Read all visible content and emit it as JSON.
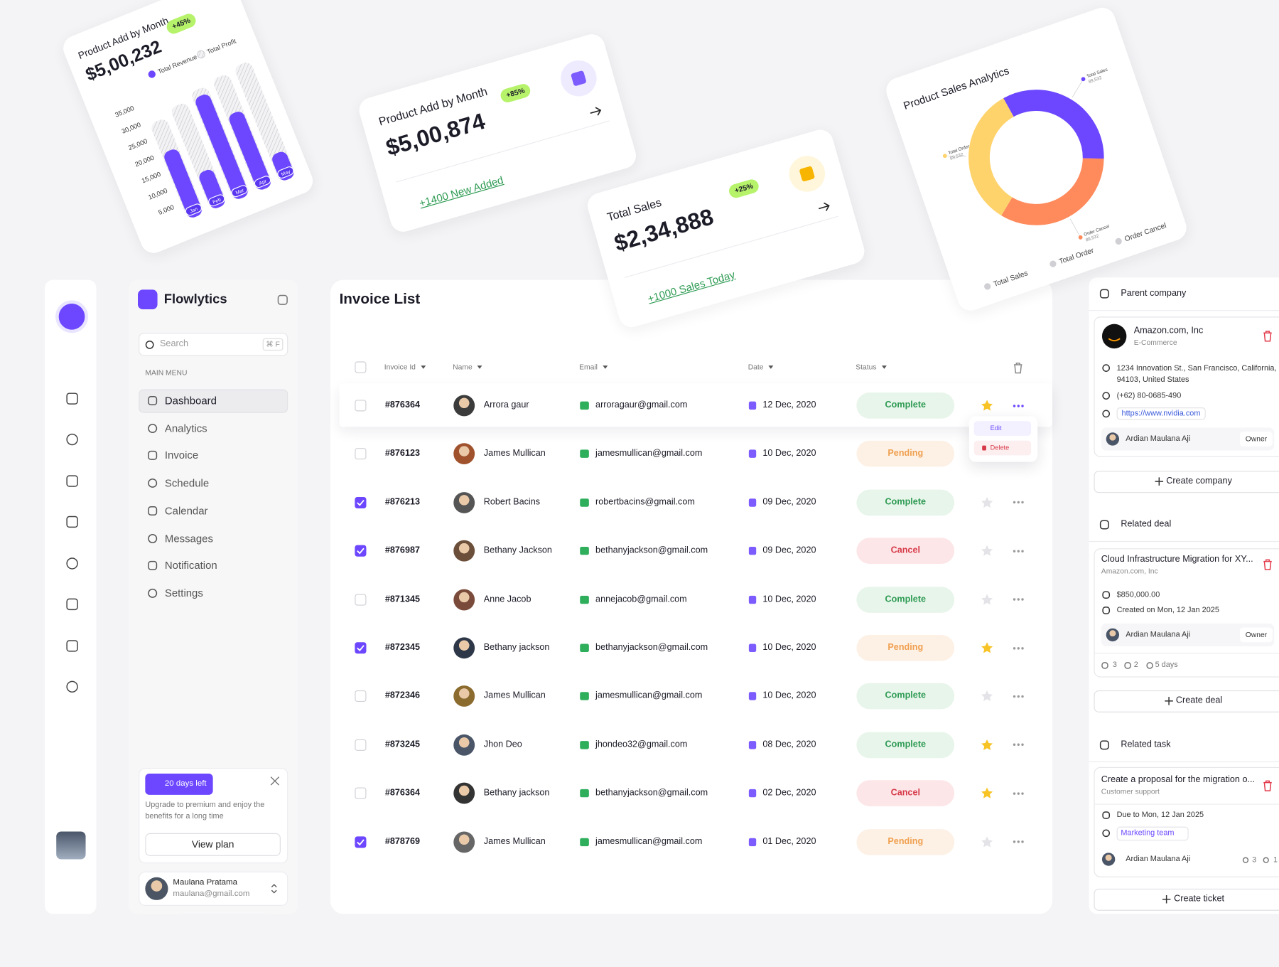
{
  "chart_data": [
    {
      "type": "bar",
      "categories": [
        "Jan",
        "Feb",
        "Mar",
        "Apr",
        "May"
      ],
      "series": [
        {
          "name": "Total Revenue",
          "color": "#6c47ff",
          "values": [
            20000,
            11000,
            31000,
            23000,
            8000
          ]
        },
        {
          "name": "Total Profit",
          "color": "#cfcfd4",
          "values": [
            29000,
            31000,
            33000,
            34000,
            35000
          ]
        }
      ],
      "ylim": [
        0,
        36000
      ],
      "yticks": [
        {
          "value": 5000,
          "label": "5,000"
        },
        {
          "value": 10000,
          "label": "10,000"
        },
        {
          "value": 15000,
          "label": "15,000"
        },
        {
          "value": 20000,
          "label": "20,000"
        },
        {
          "value": 25000,
          "label": "25,000"
        },
        {
          "value": 30000,
          "label": "30,000"
        },
        {
          "value": 35000,
          "label": "35,000"
        }
      ]
    },
    {
      "type": "donut",
      "categories": [
        "Total Sales",
        "Total Order",
        "Order Cancel"
      ],
      "values": [
        89532,
        89532,
        89532
      ],
      "value_labels": [
        "89,532",
        "89,532",
        "89,532"
      ],
      "colors": [
        "#6c47ff",
        "#ffd36b",
        "#ff8a5c"
      ]
    }
  ],
  "cards": [
    {
      "title": "Product Add by Month",
      "amount": "$5,00,232",
      "badge": "+45%"
    },
    {
      "title": "Product Add by Month",
      "amount": "$5,00,874",
      "badge": "+85%",
      "footer": "+1400 New Added"
    },
    {
      "title": "Total Sales",
      "amount": "$2,34,888",
      "badge": "+25%",
      "footer": "+1000 Sales Today"
    },
    {
      "title": "Product Sales Analytics"
    }
  ],
  "nav": {
    "brand": "Flowlytics",
    "search": "Search",
    "shortcut": "⌘ F",
    "section": "MAIN MENU",
    "items": [
      "Dashboard",
      "Analytics",
      "Invoice",
      "Schedule",
      "Calendar",
      "Messages",
      "Notification",
      "Settings"
    ]
  },
  "promo": {
    "badge": "20 days left",
    "text": "Upgrade to premium and enjoy the benefits for a long time",
    "button": "View plan"
  },
  "user": {
    "name": "Maulana Pratama",
    "email": "maulana@gmail.com"
  },
  "invoice": {
    "title": "Invoice List",
    "columns": [
      "Invoice Id",
      "Name",
      "Email",
      "Date",
      "Status"
    ],
    "rows": [
      [
        "#876364",
        "Arrora gaur",
        "arroragaur@gmail.com",
        "12 Dec, 2020",
        "Complete"
      ],
      [
        "#876123",
        "James Mullican",
        "jamesmullican@gmail.com",
        "10 Dec, 2020",
        "Pending"
      ],
      [
        "#876213",
        "Robert Bacins",
        "robertbacins@gmail.com",
        "09 Dec, 2020",
        "Complete"
      ],
      [
        "#876987",
        "Bethany Jackson",
        "bethanyjackson@gmail.com",
        "09 Dec, 2020",
        "Cancel"
      ],
      [
        "#871345",
        "Anne Jacob",
        "annejacob@gmail.com",
        "10 Dec, 2020",
        "Complete"
      ],
      [
        "#872345",
        "Bethany jackson",
        "bethanyjackson@gmail.com",
        "10 Dec, 2020",
        "Pending"
      ],
      [
        "#872346",
        "James Mullican",
        "jamesmullican@gmail.com",
        "10 Dec, 2020",
        "Complete"
      ],
      [
        "#873245",
        "Jhon Deo",
        "jhondeo32@gmail.com",
        "08 Dec, 2020",
        "Complete"
      ],
      [
        "#876364",
        "Bethany jackson",
        "bethanyjackson@gmail.com",
        "02 Dec, 2020",
        "Cancel"
      ],
      [
        "#878769",
        "James Mullican",
        "jamesmullican@gmail.com",
        "01 Dec, 2020",
        "Pending"
      ]
    ],
    "checked": [
      false,
      false,
      true,
      true,
      false,
      true,
      false,
      false,
      false,
      true
    ],
    "starred": [
      true,
      false,
      false,
      false,
      false,
      true,
      false,
      true,
      true,
      false
    ],
    "menu": [
      "Edit",
      "Delete"
    ]
  },
  "company": {
    "heading": "Parent company",
    "name": "Amazon.com, Inc",
    "type": "E-Commerce",
    "address": "1234 Innovation St., San Francisco, California, 94103, United States",
    "phone": "(+62) 80-0685-490",
    "url": "https://www.nvidia.com",
    "owner": "Ardian Maulana Aji",
    "role": "Owner",
    "button": "Create company"
  },
  "deal": {
    "heading": "Related deal",
    "title": "Cloud Infrastructure Migration for XY...",
    "company": "Amazon.com, Inc",
    "amount": "$850,000.00",
    "created": "Created on Mon, 12 Jan 2025",
    "owner": "Ardian Maulana Aji",
    "role": "Owner",
    "stats": [
      "3",
      "2",
      "5 days"
    ],
    "button": "Create deal"
  },
  "task": {
    "heading": "Related task",
    "title": "Create a proposal for the migration o...",
    "category": "Customer support",
    "due": "Due to Mon, 12 Jan 2025",
    "team": "Marketing team",
    "owner": "Ardian Maulana Aji",
    "stats": [
      "3",
      "1"
    ],
    "button": "Create ticket"
  }
}
